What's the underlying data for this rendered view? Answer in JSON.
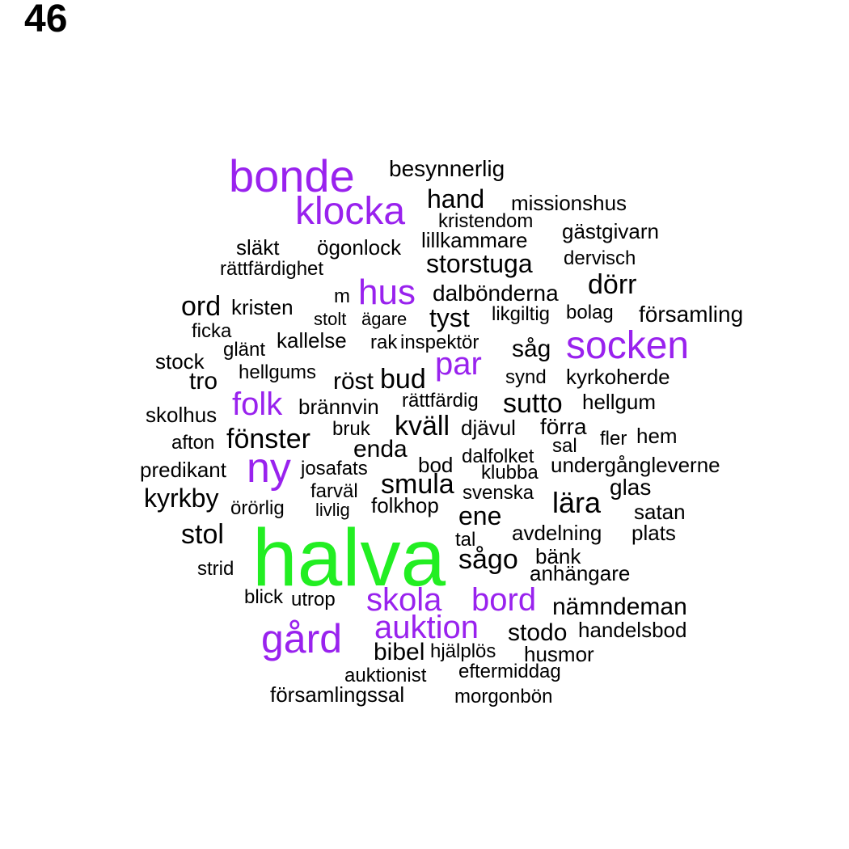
{
  "label": "46",
  "colors": {
    "green": "#22ee22",
    "purple": "#9922ee",
    "black": "#000000"
  },
  "words": [
    {
      "text": "halva",
      "color": "green"
    },
    {
      "text": "bonde",
      "color": "purple"
    },
    {
      "text": "klocka",
      "color": "purple"
    },
    {
      "text": "hus",
      "color": "purple"
    },
    {
      "text": "socken",
      "color": "purple"
    },
    {
      "text": "par",
      "color": "purple"
    },
    {
      "text": "folk",
      "color": "purple"
    },
    {
      "text": "ny",
      "color": "purple"
    },
    {
      "text": "skola",
      "color": "purple"
    },
    {
      "text": "bord",
      "color": "purple"
    },
    {
      "text": "auktion",
      "color": "purple"
    },
    {
      "text": "gård",
      "color": "purple"
    },
    {
      "text": "besynnerlig",
      "color": "black"
    },
    {
      "text": "hand",
      "color": "black"
    },
    {
      "text": "missionshus",
      "color": "black"
    },
    {
      "text": "kristendom",
      "color": "black"
    },
    {
      "text": "gästgivarn",
      "color": "black"
    },
    {
      "text": "släkt",
      "color": "black"
    },
    {
      "text": "ögonlock",
      "color": "black"
    },
    {
      "text": "lillkammare",
      "color": "black"
    },
    {
      "text": "dervisch",
      "color": "black"
    },
    {
      "text": "rättfärdighet",
      "color": "black"
    },
    {
      "text": "storstuga",
      "color": "black"
    },
    {
      "text": "dörr",
      "color": "black"
    },
    {
      "text": "ord",
      "color": "black"
    },
    {
      "text": "kristen",
      "color": "black"
    },
    {
      "text": "m",
      "color": "black"
    },
    {
      "text": "dalbönderna",
      "color": "black"
    },
    {
      "text": "stolt",
      "color": "black"
    },
    {
      "text": "ägare",
      "color": "black"
    },
    {
      "text": "tyst",
      "color": "black"
    },
    {
      "text": "likgiltig",
      "color": "black"
    },
    {
      "text": "bolag",
      "color": "black"
    },
    {
      "text": "församling",
      "color": "black"
    },
    {
      "text": "ficka",
      "color": "black"
    },
    {
      "text": "kallelse",
      "color": "black"
    },
    {
      "text": "rak",
      "color": "black"
    },
    {
      "text": "inspektör",
      "color": "black"
    },
    {
      "text": "såg",
      "color": "black"
    },
    {
      "text": "glänt",
      "color": "black"
    },
    {
      "text": "stock",
      "color": "black"
    },
    {
      "text": "hellgums",
      "color": "black"
    },
    {
      "text": "tro",
      "color": "black"
    },
    {
      "text": "röst",
      "color": "black"
    },
    {
      "text": "bud",
      "color": "black"
    },
    {
      "text": "synd",
      "color": "black"
    },
    {
      "text": "kyrkoherde",
      "color": "black"
    },
    {
      "text": "brännvin",
      "color": "black"
    },
    {
      "text": "rättfärdig",
      "color": "black"
    },
    {
      "text": "sutto",
      "color": "black"
    },
    {
      "text": "hellgum",
      "color": "black"
    },
    {
      "text": "skolhus",
      "color": "black"
    },
    {
      "text": "bruk",
      "color": "black"
    },
    {
      "text": "kväll",
      "color": "black"
    },
    {
      "text": "djävul",
      "color": "black"
    },
    {
      "text": "förra",
      "color": "black"
    },
    {
      "text": "fler",
      "color": "black"
    },
    {
      "text": "hem",
      "color": "black"
    },
    {
      "text": "afton",
      "color": "black"
    },
    {
      "text": "fönster",
      "color": "black"
    },
    {
      "text": "enda",
      "color": "black"
    },
    {
      "text": "sal",
      "color": "black"
    },
    {
      "text": "dalfolket",
      "color": "black"
    },
    {
      "text": "predikant",
      "color": "black"
    },
    {
      "text": "josafats",
      "color": "black"
    },
    {
      "text": "bod",
      "color": "black"
    },
    {
      "text": "klubba",
      "color": "black"
    },
    {
      "text": "undergångleverne",
      "color": "black"
    },
    {
      "text": "smula",
      "color": "black"
    },
    {
      "text": "glas",
      "color": "black"
    },
    {
      "text": "kyrkby",
      "color": "black"
    },
    {
      "text": "farväl",
      "color": "black"
    },
    {
      "text": "svenska",
      "color": "black"
    },
    {
      "text": "lära",
      "color": "black"
    },
    {
      "text": "örörlig",
      "color": "black"
    },
    {
      "text": "livlig",
      "color": "black"
    },
    {
      "text": "folkhop",
      "color": "black"
    },
    {
      "text": "ene",
      "color": "black"
    },
    {
      "text": "satan",
      "color": "black"
    },
    {
      "text": "stol",
      "color": "black"
    },
    {
      "text": "avdelning",
      "color": "black"
    },
    {
      "text": "plats",
      "color": "black"
    },
    {
      "text": "tal",
      "color": "black"
    },
    {
      "text": "sågo",
      "color": "black"
    },
    {
      "text": "bänk",
      "color": "black"
    },
    {
      "text": "strid",
      "color": "black"
    },
    {
      "text": "anhängare",
      "color": "black"
    },
    {
      "text": "blick",
      "color": "black"
    },
    {
      "text": "utrop",
      "color": "black"
    },
    {
      "text": "nämndeman",
      "color": "black"
    },
    {
      "text": "stodo",
      "color": "black"
    },
    {
      "text": "handelsbod",
      "color": "black"
    },
    {
      "text": "bibel",
      "color": "black"
    },
    {
      "text": "hjälplös",
      "color": "black"
    },
    {
      "text": "husmor",
      "color": "black"
    },
    {
      "text": "auktionist",
      "color": "black"
    },
    {
      "text": "eftermiddag",
      "color": "black"
    },
    {
      "text": "församlingssal",
      "color": "black"
    },
    {
      "text": "morgonbön",
      "color": "black"
    }
  ]
}
